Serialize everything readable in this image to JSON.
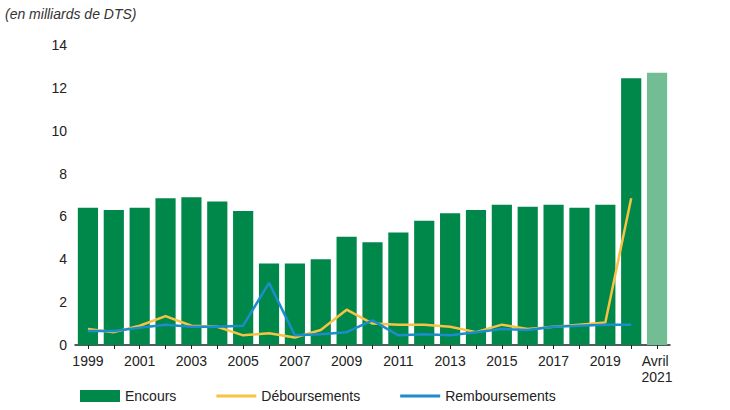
{
  "chart_data": {
    "type": "bar",
    "subtitle": "(en milliards de DTS)",
    "categories": [
      "1999",
      null,
      "2001",
      null,
      "2003",
      null,
      "2005",
      null,
      "2007",
      null,
      "2009",
      null,
      "2011",
      null,
      "2013",
      null,
      "2015",
      null,
      "2017",
      null,
      "2019",
      null,
      "Avril 2021"
    ],
    "series": [
      {
        "name": "Encours",
        "type": "bar",
        "color": "#00874a",
        "colors": [
          "#00874a",
          "#00874a",
          "#00874a",
          "#00874a",
          "#00874a",
          "#00874a",
          "#00874a",
          "#00874a",
          "#00874a",
          "#00874a",
          "#00874a",
          "#00874a",
          "#00874a",
          "#00874a",
          "#00874a",
          "#00874a",
          "#00874a",
          "#00874a",
          "#00874a",
          "#00874a",
          "#00874a",
          "#00874a",
          "#72bd94"
        ],
        "values": [
          6.4,
          6.3,
          6.4,
          6.85,
          6.9,
          6.7,
          6.25,
          3.8,
          3.8,
          4.0,
          5.05,
          4.8,
          5.25,
          5.8,
          6.15,
          6.3,
          6.55,
          6.45,
          6.55,
          6.4,
          6.55,
          12.45,
          12.7
        ]
      },
      {
        "name": "Déboursements",
        "type": "line",
        "color": "#f6c343",
        "values": [
          0.75,
          0.6,
          0.9,
          1.35,
          0.9,
          0.85,
          0.45,
          0.55,
          0.35,
          0.7,
          1.65,
          1.0,
          0.95,
          0.95,
          0.85,
          0.6,
          0.95,
          0.75,
          0.85,
          0.95,
          1.05,
          6.85,
          null
        ]
      },
      {
        "name": "Remboursements",
        "type": "line",
        "color": "#1a8dca",
        "values": [
          0.65,
          0.65,
          0.8,
          0.95,
          0.85,
          0.85,
          0.9,
          2.9,
          0.45,
          0.5,
          0.6,
          1.15,
          0.45,
          0.5,
          0.45,
          0.6,
          0.75,
          0.7,
          0.85,
          0.9,
          0.95,
          0.95,
          null
        ]
      }
    ],
    "ylim": [
      0,
      14
    ],
    "yticks": [
      0,
      2,
      4,
      6,
      8,
      10,
      12,
      14
    ],
    "grid": false,
    "legend": "bottom"
  }
}
